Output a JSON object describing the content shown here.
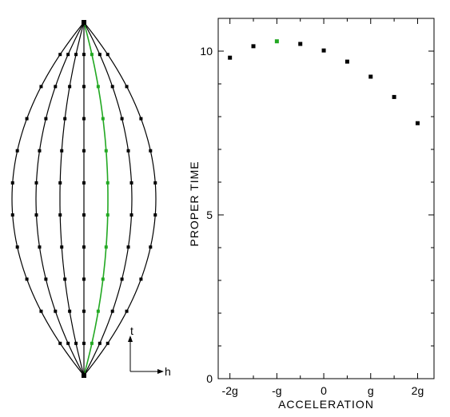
{
  "colors": {
    "ink": "#000000",
    "highlight": "#22a822",
    "background": "#ffffff"
  },
  "diagram": {
    "axis_t_label": "t",
    "axis_h_label": "h",
    "worldline_accelerations": [
      -3,
      -2,
      -1,
      0,
      1,
      2,
      3
    ],
    "highlighted_acceleration": -1,
    "ticks_per_worldline": 11
  },
  "chart_data": {
    "type": "scatter",
    "title": "",
    "xlabel": "ACCELERATION",
    "ylabel": "PROPER TIME",
    "xlim": [
      -2.25,
      2.35
    ],
    "ylim": [
      0,
      11
    ],
    "xticks": [
      {
        "value": -2,
        "label": "-2g"
      },
      {
        "value": -1,
        "label": "-g"
      },
      {
        "value": 0,
        "label": "0"
      },
      {
        "value": 1,
        "label": "g"
      },
      {
        "value": 2,
        "label": "2g"
      }
    ],
    "yticks": [
      {
        "value": 0,
        "label": "0"
      },
      {
        "value": 5,
        "label": "5"
      },
      {
        "value": 10,
        "label": "10"
      }
    ],
    "series": [
      {
        "x": [
          -2,
          -1.5,
          -1,
          -0.5,
          0,
          0.5,
          1,
          1.5,
          2
        ],
        "y": [
          9.8,
          10.15,
          10.3,
          10.22,
          10.02,
          9.68,
          9.22,
          8.6,
          7.8
        ],
        "highlight_index": 2
      }
    ],
    "grid": false,
    "legend": "none"
  }
}
